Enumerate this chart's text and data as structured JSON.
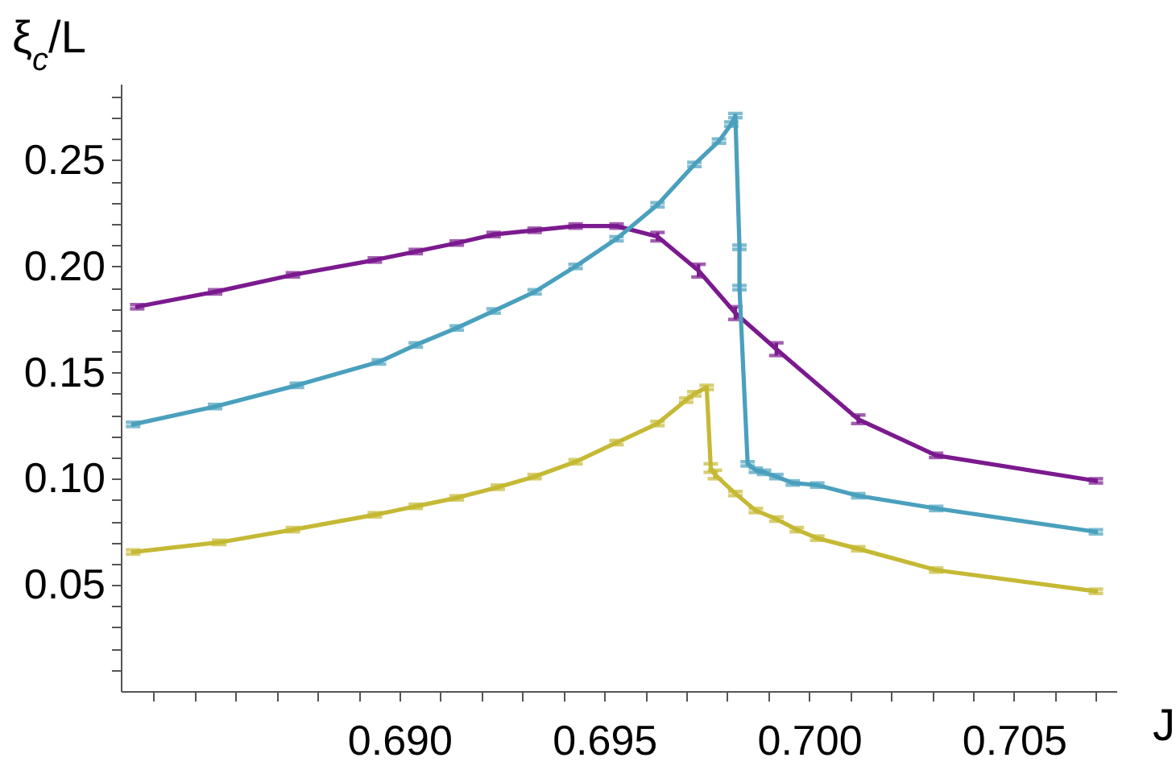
{
  "chart_data": {
    "type": "line",
    "xlabel": "J",
    "ylabel": "ξ$_{c}$/L",
    "xlim": [
      0.6832,
      0.7075
    ],
    "ylim": [
      0,
      0.286
    ],
    "xticks": [
      {
        "value": 0.684,
        "label": null
      },
      {
        "value": 0.685,
        "label": null
      },
      {
        "value": 0.686,
        "label": null
      },
      {
        "value": 0.687,
        "label": null
      },
      {
        "value": 0.688,
        "label": null
      },
      {
        "value": 0.689,
        "label": null
      },
      {
        "value": 0.69,
        "label": "0.690"
      },
      {
        "value": 0.691,
        "label": null
      },
      {
        "value": 0.692,
        "label": null
      },
      {
        "value": 0.693,
        "label": null
      },
      {
        "value": 0.694,
        "label": null
      },
      {
        "value": 0.695,
        "label": "0.695"
      },
      {
        "value": 0.696,
        "label": null
      },
      {
        "value": 0.697,
        "label": null
      },
      {
        "value": 0.698,
        "label": null
      },
      {
        "value": 0.699,
        "label": null
      },
      {
        "value": 0.7,
        "label": "0.700"
      },
      {
        "value": 0.701,
        "label": null
      },
      {
        "value": 0.702,
        "label": null
      },
      {
        "value": 0.703,
        "label": null
      },
      {
        "value": 0.704,
        "label": null
      },
      {
        "value": 0.705,
        "label": "0.705"
      },
      {
        "value": 0.706,
        "label": null
      },
      {
        "value": 0.707,
        "label": null
      }
    ],
    "yticks": [
      {
        "value": 0.01,
        "label": null
      },
      {
        "value": 0.02,
        "label": null
      },
      {
        "value": 0.03,
        "label": null
      },
      {
        "value": 0.04,
        "label": null
      },
      {
        "value": 0.05,
        "label": "0.05"
      },
      {
        "value": 0.06,
        "label": null
      },
      {
        "value": 0.07,
        "label": null
      },
      {
        "value": 0.08,
        "label": null
      },
      {
        "value": 0.09,
        "label": null
      },
      {
        "value": 0.1,
        "label": "0.10"
      },
      {
        "value": 0.11,
        "label": null
      },
      {
        "value": 0.12,
        "label": null
      },
      {
        "value": 0.13,
        "label": null
      },
      {
        "value": 0.14,
        "label": null
      },
      {
        "value": 0.15,
        "label": "0.15"
      },
      {
        "value": 0.16,
        "label": null
      },
      {
        "value": 0.17,
        "label": null
      },
      {
        "value": 0.18,
        "label": null
      },
      {
        "value": 0.19,
        "label": null
      },
      {
        "value": 0.2,
        "label": "0.20"
      },
      {
        "value": 0.21,
        "label": null
      },
      {
        "value": 0.22,
        "label": null
      },
      {
        "value": 0.23,
        "label": null
      },
      {
        "value": 0.24,
        "label": null
      },
      {
        "value": 0.25,
        "label": "0.25"
      },
      {
        "value": 0.26,
        "label": null
      },
      {
        "value": 0.27,
        "label": null
      },
      {
        "value": 0.28,
        "label": null
      }
    ],
    "grid": false,
    "marker": "none",
    "line_style": "solid",
    "series": [
      {
        "color": "#7b1a8e",
        "x": [
          0.6836,
          0.6855,
          0.6874,
          0.6894,
          0.6904,
          0.6914,
          0.6923,
          0.6933,
          0.6943,
          0.6953,
          0.6963,
          0.6973,
          0.6982,
          0.6992,
          0.7012,
          0.7031,
          0.707
        ],
        "values": [
          0.181,
          0.188,
          0.196,
          0.203,
          0.207,
          0.211,
          0.215,
          0.217,
          0.219,
          0.219,
          0.214,
          0.198,
          0.178,
          0.161,
          0.128,
          0.111,
          0.099
        ],
        "errors": [
          0.001,
          0.001,
          0.001,
          0.001,
          0.001,
          0.001,
          0.001,
          0.001,
          0.001,
          0.001,
          0.002,
          0.003,
          0.003,
          0.003,
          0.002,
          0.001,
          0.001
        ]
      },
      {
        "color": "#4aa0bd",
        "x": [
          0.6835,
          0.6855,
          0.6875,
          0.6895,
          0.6904,
          0.6914,
          0.6923,
          0.6933,
          0.6943,
          0.6953,
          0.6963,
          0.6972,
          0.6978,
          0.6981,
          0.6982,
          0.6983,
          0.6983,
          0.6985,
          0.6987,
          0.6989,
          0.6992,
          0.6996,
          0.7002,
          0.7012,
          0.7031,
          0.707
        ],
        "values": [
          0.1256,
          0.134,
          0.144,
          0.155,
          0.163,
          0.171,
          0.179,
          0.188,
          0.2,
          0.213,
          0.229,
          0.248,
          0.259,
          0.267,
          0.271,
          0.209,
          0.19,
          0.107,
          0.104,
          0.103,
          0.101,
          0.098,
          0.097,
          0.092,
          0.086,
          0.075
        ],
        "errors": [
          0.001,
          0.001,
          0.001,
          0.001,
          0.001,
          0.001,
          0.001,
          0.001,
          0.001,
          0.001,
          0.001,
          0.001,
          0.001,
          0.001,
          0.001,
          0.001,
          0.001,
          0.001,
          0.001,
          0.001,
          0.001,
          0.001,
          0.001,
          0.001,
          0.001,
          0.001
        ]
      },
      {
        "color": "#c5b935",
        "x": [
          0.6835,
          0.6856,
          0.6874,
          0.6894,
          0.6904,
          0.6914,
          0.6924,
          0.6933,
          0.6943,
          0.6953,
          0.6963,
          0.697,
          0.6972,
          0.6975,
          0.6976,
          0.6977,
          0.6982,
          0.6987,
          0.6992,
          0.6997,
          0.7002,
          0.7012,
          0.7031,
          0.707
        ],
        "values": [
          0.0655,
          0.07,
          0.076,
          0.083,
          0.087,
          0.091,
          0.096,
          0.101,
          0.108,
          0.117,
          0.126,
          0.137,
          0.14,
          0.143,
          0.105,
          0.102,
          0.093,
          0.085,
          0.081,
          0.076,
          0.072,
          0.067,
          0.057,
          0.047
        ],
        "errors": [
          0.001,
          0.001,
          0.001,
          0.001,
          0.001,
          0.001,
          0.001,
          0.001,
          0.001,
          0.001,
          0.001,
          0.001,
          0.001,
          0.001,
          0.002,
          0.002,
          0.001,
          0.001,
          0.001,
          0.001,
          0.001,
          0.001,
          0.001,
          0.001
        ]
      }
    ]
  }
}
